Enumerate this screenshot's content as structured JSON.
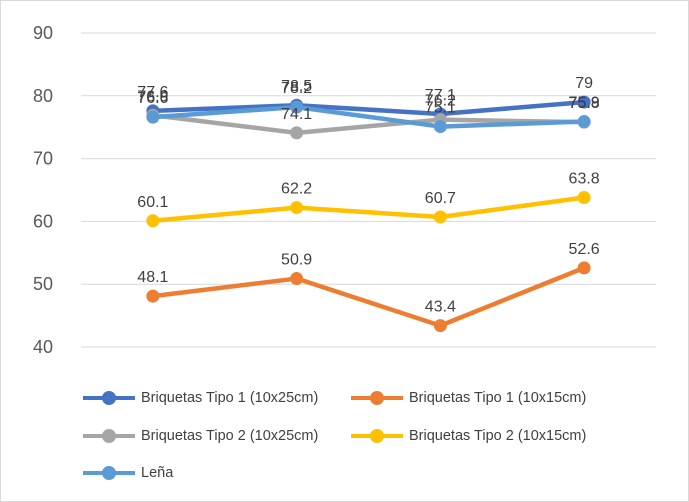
{
  "chart_data": {
    "type": "line",
    "categories": [
      "",
      "",
      "",
      ""
    ],
    "ylim": [
      40,
      90
    ],
    "yticks": [
      "40",
      "50",
      "60",
      "70",
      "80",
      "90"
    ],
    "grid": true,
    "legend_position": "bottom",
    "series": [
      {
        "name": "Briquetas Tipo 1 (10x25cm)",
        "color": "#4472C4",
        "values": [
          77.6,
          78.5,
          77.1,
          79
        ],
        "labels": [
          "77.6",
          "78.5",
          "77.1",
          "79"
        ]
      },
      {
        "name": "Briquetas Tipo 1 (10x15cm)",
        "color": "#ED7D31",
        "values": [
          48.1,
          50.9,
          43.4,
          52.6
        ],
        "labels": [
          "48.1",
          "50.9",
          "43.4",
          "52.6"
        ]
      },
      {
        "name": "Briquetas Tipo 2 (10x25cm)",
        "color": "#A5A5A5",
        "values": [
          76.9,
          74.1,
          76.2,
          75.8
        ],
        "labels": [
          "76.9",
          "74.1",
          "76.2",
          "75.8"
        ]
      },
      {
        "name": "Briquetas Tipo 2 (10x15cm)",
        "color": "#FFC000",
        "values": [
          60.1,
          62.2,
          60.7,
          63.8
        ],
        "labels": [
          "60.1",
          "62.2",
          "60.7",
          "63.8"
        ]
      },
      {
        "name": "Leña",
        "color": "#5B9BD5",
        "values": [
          76.6,
          78.2,
          75.1,
          75.9
        ],
        "labels": [
          "76.6",
          "78.2",
          "75.1",
          "75.9"
        ]
      }
    ]
  }
}
